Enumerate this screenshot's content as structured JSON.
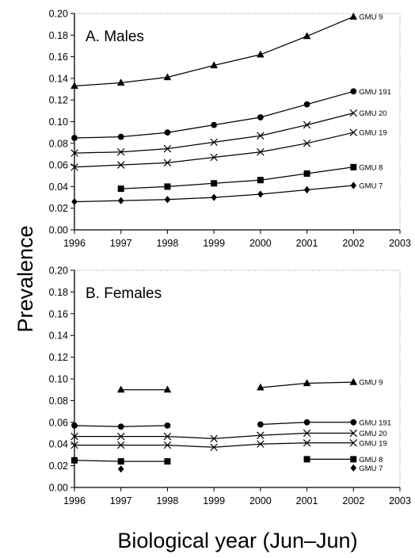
{
  "figure": {
    "ylabel": "Prevalence",
    "xlabel": "Biological year (Jun–Jun)"
  },
  "chart_data": [
    {
      "type": "line",
      "title": "A. Males",
      "x_ticks": [
        "1996",
        "1997",
        "1998",
        "1999",
        "2000",
        "2001",
        "2002",
        "2003"
      ],
      "y_ticks": [
        "0.00",
        "0.02",
        "0.04",
        "0.06",
        "0.08",
        "0.10",
        "0.12",
        "0.14",
        "0.16",
        "0.18",
        "0.20"
      ],
      "xlim": [
        1996,
        2003
      ],
      "ylim": [
        0,
        0.2
      ],
      "grid": false,
      "series": [
        {
          "name": "GMU 9",
          "marker": "triangle",
          "x": [
            1996,
            1997,
            1998,
            1999,
            2000,
            2001,
            2002
          ],
          "values": [
            0.133,
            0.136,
            0.141,
            0.152,
            0.162,
            0.179,
            0.197
          ]
        },
        {
          "name": "GMU 191",
          "marker": "circle",
          "x": [
            1996,
            1997,
            1998,
            1999,
            2000,
            2001,
            2002
          ],
          "values": [
            0.085,
            0.086,
            0.09,
            0.097,
            0.104,
            0.116,
            0.128
          ]
        },
        {
          "name": "GMU 20",
          "marker": "x",
          "x": [
            1996,
            1997,
            1998,
            1999,
            2000,
            2001,
            2002
          ],
          "values": [
            0.071,
            0.072,
            0.075,
            0.081,
            0.087,
            0.097,
            0.108
          ]
        },
        {
          "name": "GMU 19",
          "marker": "x",
          "x": [
            1996,
            1997,
            1998,
            1999,
            2000,
            2001,
            2002
          ],
          "values": [
            0.058,
            0.06,
            0.062,
            0.067,
            0.072,
            0.08,
            0.09
          ]
        },
        {
          "name": "GMU 8",
          "marker": "square",
          "x": [
            1997,
            1998,
            1999,
            2000,
            2001,
            2002
          ],
          "values": [
            0.038,
            0.04,
            0.043,
            0.046,
            0.052,
            0.058
          ]
        },
        {
          "name": "GMU 7",
          "marker": "diamond",
          "x": [
            1996,
            1997,
            1998,
            1999,
            2000,
            2001,
            2002
          ],
          "values": [
            0.026,
            0.027,
            0.028,
            0.03,
            0.033,
            0.037,
            0.041
          ]
        }
      ]
    },
    {
      "type": "line",
      "title": "B. Females",
      "x_ticks": [
        "1996",
        "1997",
        "1998",
        "1999",
        "2000",
        "2001",
        "2002",
        "2003"
      ],
      "y_ticks": [
        "0.00",
        "0.02",
        "0.04",
        "0.06",
        "0.08",
        "0.10",
        "0.12",
        "0.14",
        "0.16",
        "0.18",
        "0.20"
      ],
      "xlim": [
        1996,
        2003
      ],
      "ylim": [
        0,
        0.2
      ],
      "grid": false,
      "series": [
        {
          "name": "GMU 9",
          "marker": "triangle",
          "segments": [
            {
              "x": [
                1997,
                1998
              ],
              "values": [
                0.09,
                0.09
              ]
            },
            {
              "x": [
                2000,
                2001,
                2002
              ],
              "values": [
                0.092,
                0.096,
                0.097
              ]
            }
          ]
        },
        {
          "name": "GMU 191",
          "marker": "circle",
          "segments": [
            {
              "x": [
                1996,
                1997,
                1998
              ],
              "values": [
                0.057,
                0.056,
                0.057
              ]
            },
            {
              "x": [
                2000,
                2001,
                2002
              ],
              "values": [
                0.058,
                0.06,
                0.06
              ]
            }
          ]
        },
        {
          "name": "GMU 20",
          "marker": "x",
          "segments": [
            {
              "x": [
                1996,
                1997,
                1998,
                1999,
                2000,
                2001,
                2002
              ],
              "values": [
                0.047,
                0.047,
                0.047,
                0.045,
                0.048,
                0.05,
                0.05
              ]
            }
          ]
        },
        {
          "name": "GMU 19",
          "marker": "x",
          "segments": [
            {
              "x": [
                1996,
                1997,
                1998,
                1999,
                2000,
                2001,
                2002
              ],
              "values": [
                0.039,
                0.039,
                0.039,
                0.037,
                0.04,
                0.041,
                0.041
              ]
            }
          ]
        },
        {
          "name": "GMU 8",
          "marker": "square",
          "segments": [
            {
              "x": [
                1996,
                1997,
                1998
              ],
              "values": [
                0.025,
                0.024,
                0.024
              ]
            },
            {
              "x": [
                2001,
                2002
              ],
              "values": [
                0.026,
                0.026
              ]
            }
          ]
        },
        {
          "name": "GMU 7",
          "marker": "diamond",
          "segments": [
            {
              "x": [
                1997
              ],
              "values": [
                0.017
              ]
            },
            {
              "x": [
                2002
              ],
              "values": [
                0.018
              ]
            }
          ]
        }
      ]
    }
  ]
}
